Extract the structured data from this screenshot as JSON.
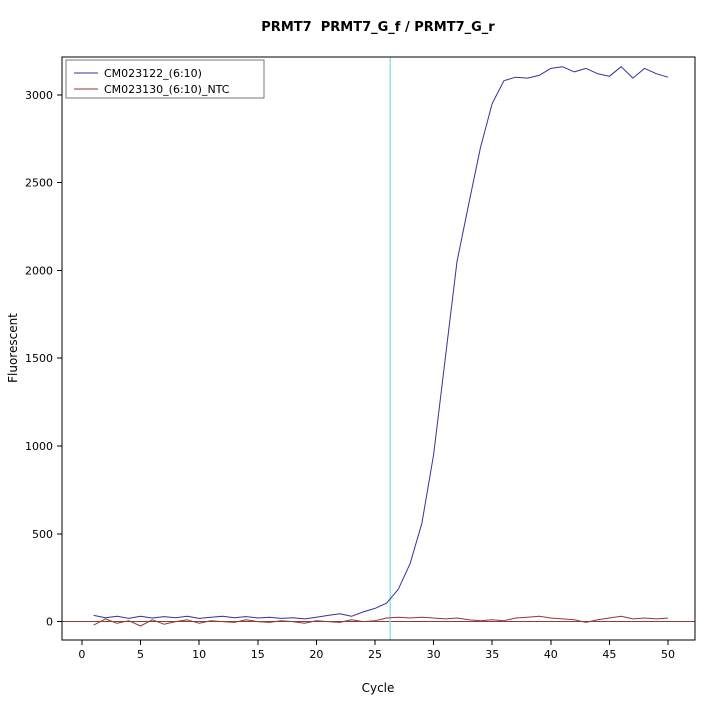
{
  "chart_data": {
    "type": "line",
    "title": "PRMT7  PRMT7_G_f / PRMT7_G_r",
    "xlabel": "Cycle",
    "ylabel": "Fluorescent",
    "x": [
      1,
      2,
      3,
      4,
      5,
      6,
      7,
      8,
      9,
      10,
      11,
      12,
      13,
      14,
      15,
      16,
      17,
      18,
      19,
      20,
      21,
      22,
      23,
      24,
      25,
      26,
      27,
      28,
      29,
      30,
      31,
      32,
      33,
      34,
      35,
      36,
      37,
      38,
      39,
      40,
      41,
      42,
      43,
      44,
      45,
      46,
      47,
      48,
      49,
      50
    ],
    "series": [
      {
        "name": "CM023122_(6:10)",
        "color": "#33339b",
        "values": [
          35,
          22,
          30,
          18,
          30,
          20,
          28,
          22,
          30,
          18,
          25,
          30,
          22,
          28,
          20,
          25,
          18,
          22,
          15,
          25,
          35,
          45,
          30,
          55,
          75,
          105,
          185,
          330,
          560,
          950,
          1500,
          2050,
          2380,
          2700,
          2950,
          3080,
          3100,
          3095,
          3110,
          3150,
          3160,
          3130,
          3150,
          3120,
          3105,
          3160,
          3095,
          3150,
          3120,
          3100
        ]
      },
      {
        "name": "CM023130_(6:10)_NTC",
        "color": "#8f3a36",
        "values": [
          -20,
          15,
          -10,
          5,
          -25,
          10,
          -15,
          0,
          10,
          -10,
          5,
          0,
          -5,
          10,
          0,
          -5,
          5,
          0,
          -10,
          5,
          0,
          -5,
          10,
          0,
          5,
          20,
          25,
          20,
          25,
          20,
          15,
          20,
          10,
          5,
          10,
          5,
          20,
          25,
          30,
          20,
          15,
          10,
          -5,
          10,
          20,
          30,
          15,
          20,
          15,
          20
        ]
      }
    ],
    "threshold_line": {
      "orientation": "vertical",
      "x": 26.3,
      "color": "#84e6e6"
    },
    "baseline_line": {
      "y": 0,
      "color": "#8f3a36"
    },
    "xticks": [
      0,
      5,
      10,
      15,
      20,
      25,
      30,
      35,
      40,
      45,
      50
    ],
    "yticks": [
      0,
      500,
      1000,
      1500,
      2000,
      2500,
      3000
    ],
    "xlim": [
      -1.7,
      52.3
    ],
    "ylim": [
      -105,
      3215
    ],
    "grid": false,
    "legend_position": "topleft"
  }
}
